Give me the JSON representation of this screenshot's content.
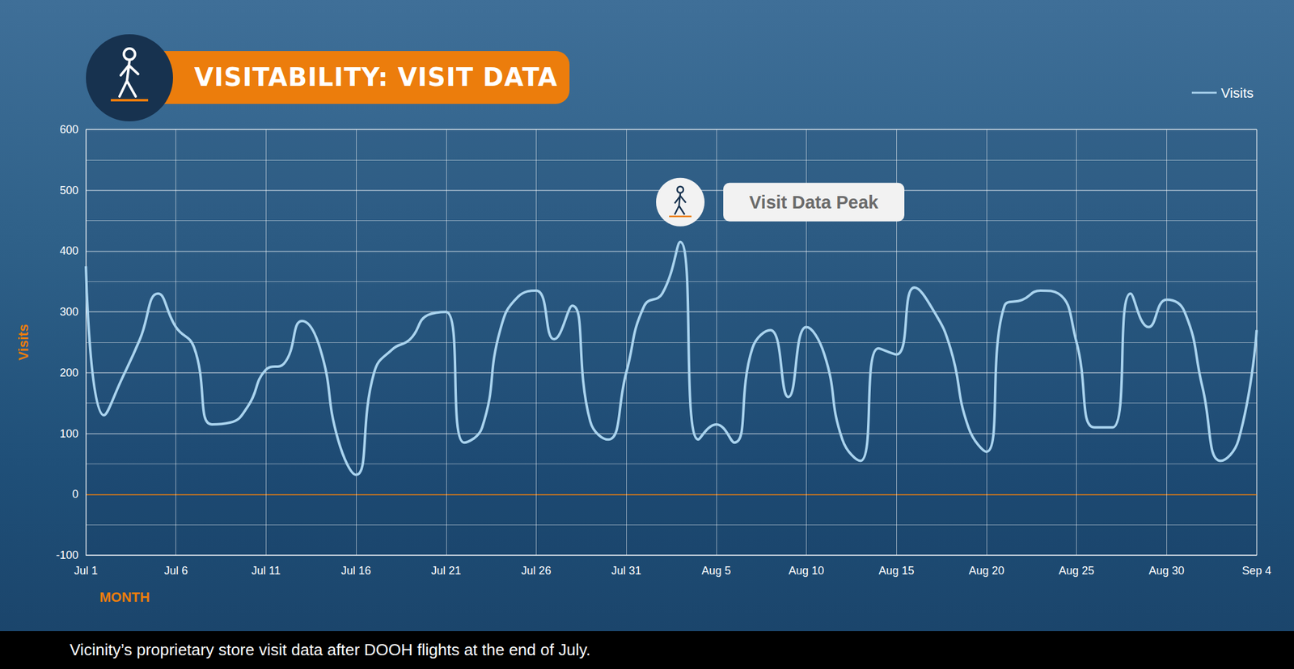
{
  "chart_data": {
    "type": "line",
    "title": "VISITABILITY: VISIT DATA",
    "caption": "Vicinity’s proprietary store visit data after DOOH flights at the end of July.",
    "x_label": "MONTH",
    "y_label": "Visits",
    "annotations": [
      "Visit Data Peak"
    ],
    "categories": [
      "Jul 1",
      null,
      null,
      null,
      null,
      "Jul 6",
      null,
      null,
      null,
      null,
      "Jul 11",
      null,
      null,
      null,
      null,
      "Jul 16",
      null,
      null,
      null,
      null,
      "Jul 21",
      null,
      null,
      null,
      null,
      "Jul 26",
      null,
      null,
      null,
      null,
      "Jul 31",
      null,
      null,
      null,
      null,
      "Aug 5",
      null,
      null,
      null,
      null,
      "Aug 10",
      null,
      null,
      null,
      null,
      "Aug 15",
      null,
      null,
      null,
      null,
      "Aug 20",
      null,
      null,
      null,
      null,
      "Aug 25",
      null,
      null,
      null,
      null,
      "Aug 30",
      null,
      null,
      null,
      null,
      "Sep 4"
    ],
    "series": [
      {
        "name": "Visits",
        "color": "#a9d3ee",
        "values": [
          375,
          130,
          190,
          255,
          330,
          275,
          242,
          115,
          118,
          145,
          205,
          215,
          285,
          240,
          90,
          32,
          200,
          238,
          255,
          295,
          300,
          85,
          110,
          270,
          325,
          335,
          255,
          310,
          120,
          90,
          200,
          310,
          330,
          415,
          90,
          115,
          85,
          240,
          270,
          160,
          275,
          230,
          90,
          55,
          240,
          230,
          340,
          305,
          240,
          110,
          70,
          310,
          320,
          335,
          330,
          250,
          110,
          110,
          330,
          275,
          320,
          300,
          175,
          55,
          90,
          270
        ]
      }
    ],
    "ylim": [
      -100,
      600
    ],
    "yticks": [
      -100,
      0,
      100,
      200,
      300,
      400,
      500,
      600
    ],
    "grid": true,
    "legend": "top-right",
    "marker": "none",
    "line_style": "solid"
  }
}
